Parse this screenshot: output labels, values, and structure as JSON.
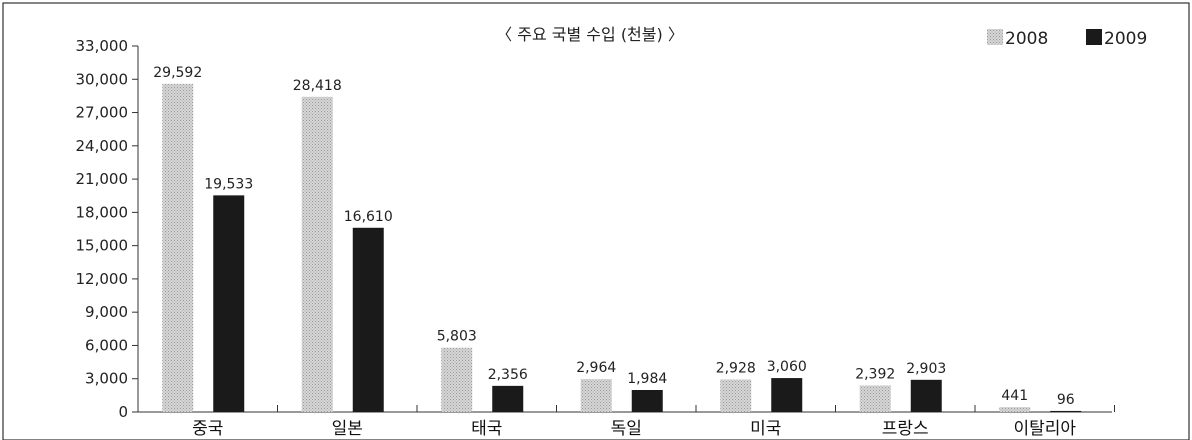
{
  "chart_data": {
    "type": "bar",
    "title": "〈 주요 국별 수입 (천불) 〉",
    "categories": [
      "중국",
      "일본",
      "태국",
      "독일",
      "미국",
      "프랑스",
      "이탈리아"
    ],
    "series": [
      {
        "name": "2008",
        "values": [
          29592,
          28418,
          5803,
          2964,
          2928,
          2392,
          441
        ],
        "labels": [
          "29,592",
          "28,418",
          "5,803",
          "2,964",
          "2,928",
          "2,392",
          "441"
        ],
        "color": "#c8c8c8"
      },
      {
        "name": "2009",
        "values": [
          19533,
          16610,
          2356,
          1984,
          3060,
          2903,
          96
        ],
        "labels": [
          "19,533",
          "16,610",
          "2,356",
          "1,984",
          "3,060",
          "2,903",
          "96"
        ],
        "color": "#1a1a1a"
      }
    ],
    "ylim": [
      0,
      33000
    ],
    "yticks": [
      0,
      3000,
      6000,
      9000,
      12000,
      15000,
      18000,
      21000,
      24000,
      27000,
      30000,
      33000
    ],
    "ytick_labels": [
      "0",
      "3,000",
      "6,000",
      "9,000",
      "12,000",
      "15,000",
      "18,000",
      "21,000",
      "24,000",
      "27,000",
      "30,000",
      "33,000"
    ],
    "xlabel": "",
    "ylabel": "",
    "grid": false,
    "legend_position": "top-right"
  }
}
